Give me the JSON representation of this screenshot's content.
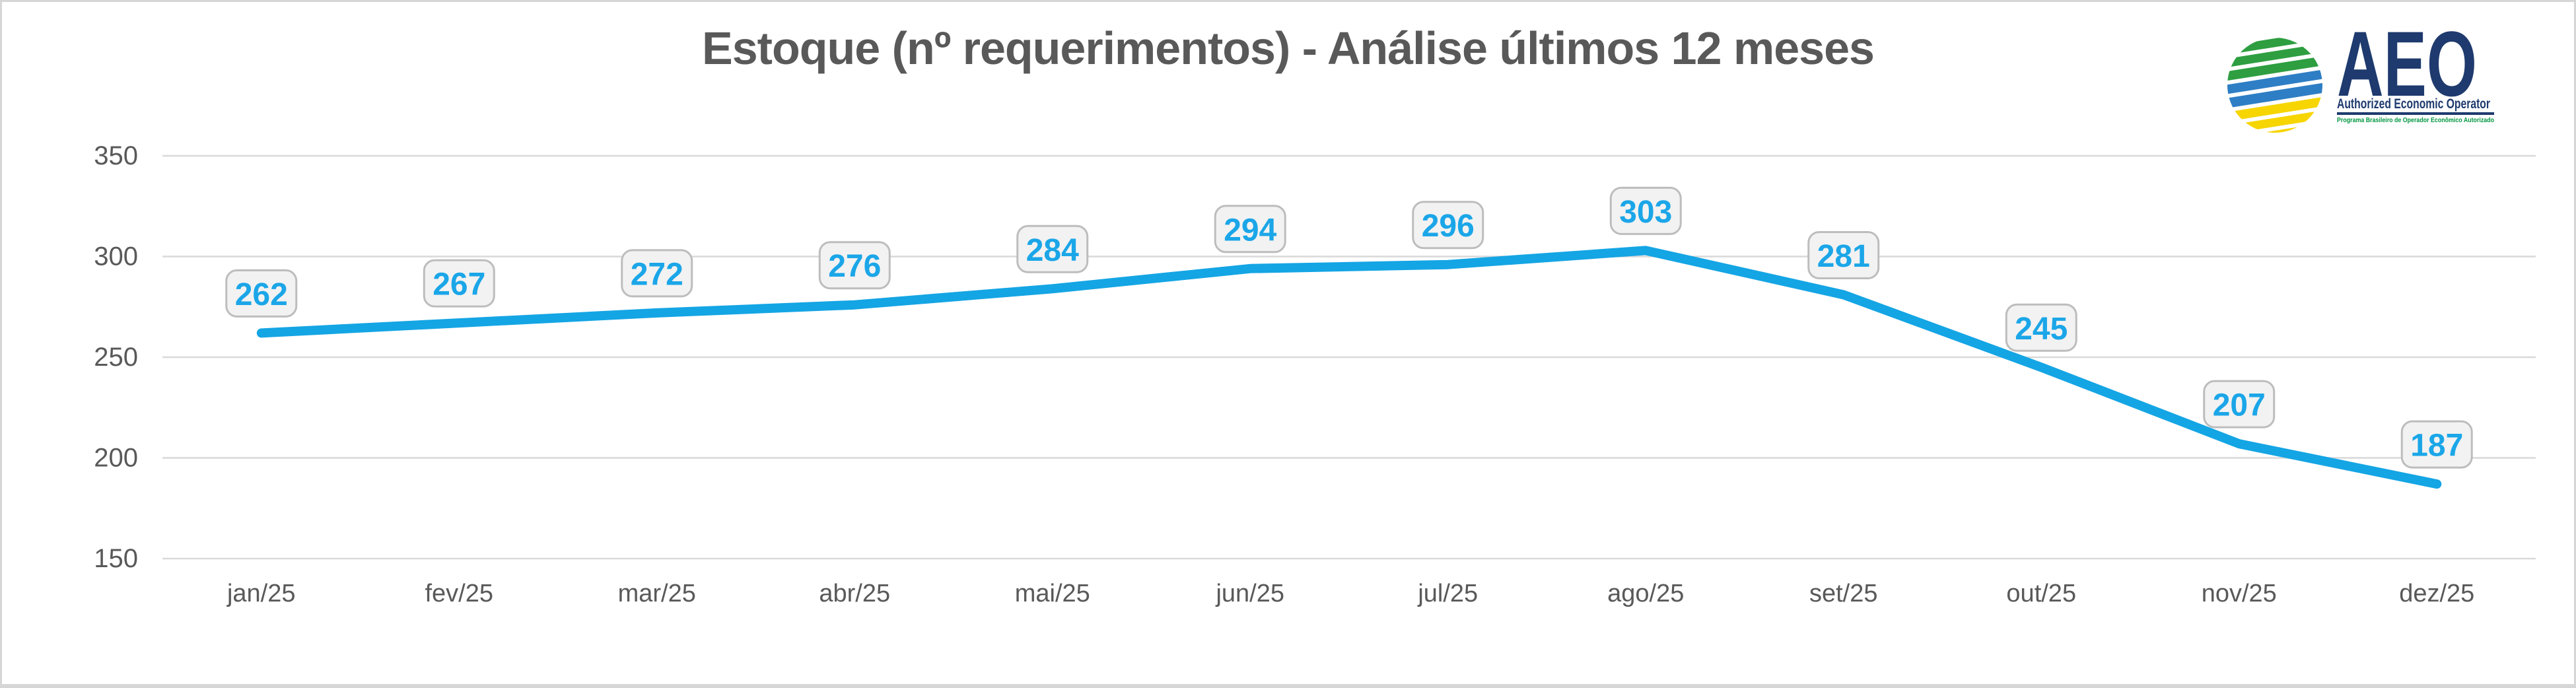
{
  "header": {
    "title": "Estoque (nº requerimentos) - Análise últimos 12 meses"
  },
  "logo": {
    "acronym": "AEO",
    "subtitle": "Authorized Economic Operator",
    "tagline": "Programa Brasileiro de Operador Econômico Autorizado",
    "colors": {
      "navy": "#1e3a6e",
      "globe_green": "#2e9e41",
      "globe_blue": "#2e7ec5",
      "globe_yellow": "#f6d500",
      "tagline_green": "#009640"
    }
  },
  "chart_data": {
    "type": "line",
    "title": "Estoque (nº requerimentos) - Análise últimos 12 meses",
    "categories": [
      "jan/25",
      "fev/25",
      "mar/25",
      "abr/25",
      "mai/25",
      "jun/25",
      "jul/25",
      "ago/25",
      "set/25",
      "out/25",
      "nov/25",
      "dez/25"
    ],
    "series": [
      {
        "name": "Estoque (nº requerimentos)",
        "values": [
          262,
          267,
          272,
          276,
          284,
          294,
          296,
          303,
          281,
          245,
          207,
          187
        ]
      }
    ],
    "ylim": [
      150,
      350
    ],
    "yticks": [
      350,
      300,
      250,
      200,
      150
    ],
    "xlabel": "",
    "ylabel": "",
    "grid": true,
    "legend_position": "none",
    "data_labels": true,
    "colors": {
      "line": "#14a5e4",
      "label_text": "#1ba6e8",
      "label_box_fill": "#f2f2f2",
      "label_box_border": "#bdbdbd",
      "axis_text": "#595959",
      "gridline": "#d9d9d9"
    }
  }
}
